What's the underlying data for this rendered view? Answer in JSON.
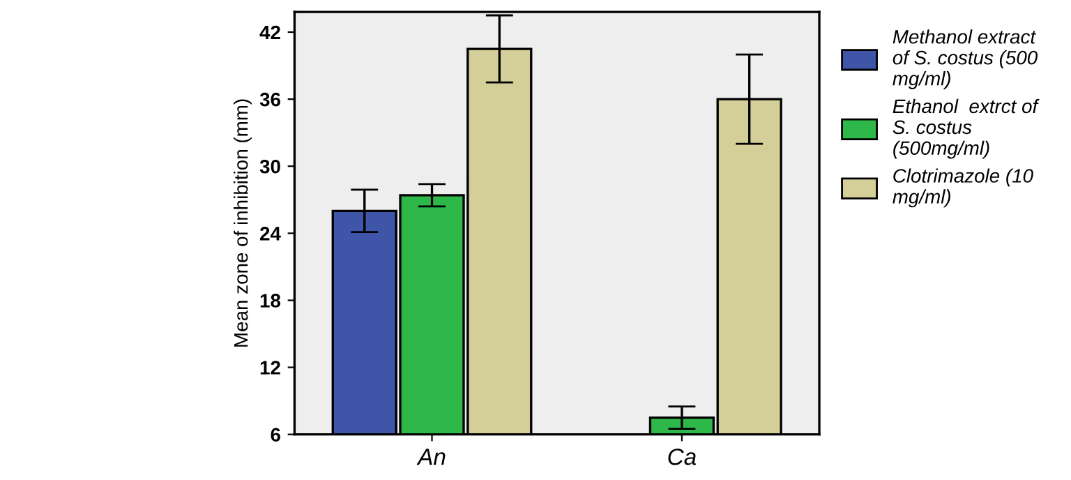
{
  "chart_data": {
    "type": "bar",
    "ylabel": "Mean zone of inhibition (mm)",
    "categories": [
      "An",
      "Ca"
    ],
    "series": [
      {
        "name": "Methanol extract of S. costus (500 mg/ml)",
        "color": "#3f56a8",
        "values": [
          26.0,
          null
        ],
        "errors": [
          1.9,
          null
        ]
      },
      {
        "name": "Ethanol  extrct of S. costus (500mg/ml)",
        "color": "#2fb84a",
        "values": [
          27.4,
          7.5
        ],
        "errors": [
          1.0,
          1.0
        ]
      },
      {
        "name": "Clotrimazole (10 mg/ml)",
        "color": "#d4cf98",
        "values": [
          40.5,
          36.0
        ],
        "errors": [
          3.0,
          4.0
        ]
      }
    ],
    "ylim": [
      6,
      43.8
    ],
    "yticks": [
      6,
      12,
      18,
      24,
      30,
      36,
      42
    ],
    "grid": false,
    "legend": "right"
  }
}
